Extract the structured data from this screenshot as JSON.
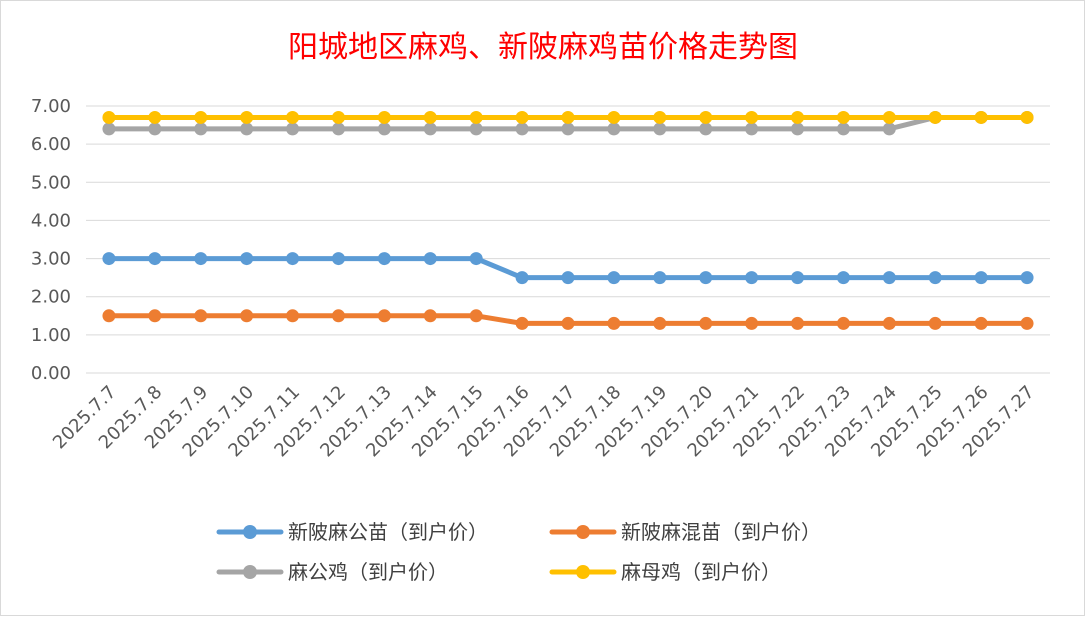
{
  "chart_data": {
    "type": "line",
    "title": "阳城地区麻鸡、新陂麻鸡苗价格走势图",
    "xlabel": "",
    "ylabel": "",
    "categories": [
      "2025.7.7",
      "2025.7.8",
      "2025.7.9",
      "2025.7.10",
      "2025.7.11",
      "2025.7.12",
      "2025.7.13",
      "2025.7.14",
      "2025.7.15",
      "2025.7.16",
      "2025.7.17",
      "2025.7.18",
      "2025.7.19",
      "2025.7.20",
      "2025.7.21",
      "2025.7.22",
      "2025.7.23",
      "2025.7.24",
      "2025.7.25",
      "2025.7.26",
      "2025.7.27"
    ],
    "ylim": [
      0,
      7
    ],
    "yticks": [
      "0.00",
      "1.00",
      "2.00",
      "3.00",
      "4.00",
      "5.00",
      "6.00",
      "7.00"
    ],
    "grid": true,
    "legend_position": "bottom",
    "series": [
      {
        "name": "新陂麻公苗（到户价）",
        "color": "#5b9bd5",
        "values": [
          3,
          3,
          3,
          3,
          3,
          3,
          3,
          3,
          3,
          2.5,
          2.5,
          2.5,
          2.5,
          2.5,
          2.5,
          2.5,
          2.5,
          2.5,
          2.5,
          2.5,
          2.5
        ]
      },
      {
        "name": "新陂麻混苗（到户价）",
        "color": "#ed7d31",
        "values": [
          1.5,
          1.5,
          1.5,
          1.5,
          1.5,
          1.5,
          1.5,
          1.5,
          1.5,
          1.3,
          1.3,
          1.3,
          1.3,
          1.3,
          1.3,
          1.3,
          1.3,
          1.3,
          1.3,
          1.3,
          1.3
        ]
      },
      {
        "name": "麻公鸡（到户价）",
        "color": "#a5a5a5",
        "values": [
          6.4,
          6.4,
          6.4,
          6.4,
          6.4,
          6.4,
          6.4,
          6.4,
          6.4,
          6.4,
          6.4,
          6.4,
          6.4,
          6.4,
          6.4,
          6.4,
          6.4,
          6.4,
          6.7,
          6.7,
          6.7
        ]
      },
      {
        "name": "麻母鸡（到户价）",
        "color": "#ffc000",
        "values": [
          6.7,
          6.7,
          6.7,
          6.7,
          6.7,
          6.7,
          6.7,
          6.7,
          6.7,
          6.7,
          6.7,
          6.7,
          6.7,
          6.7,
          6.7,
          6.7,
          6.7,
          6.7,
          6.7,
          6.7,
          6.7
        ]
      }
    ]
  }
}
